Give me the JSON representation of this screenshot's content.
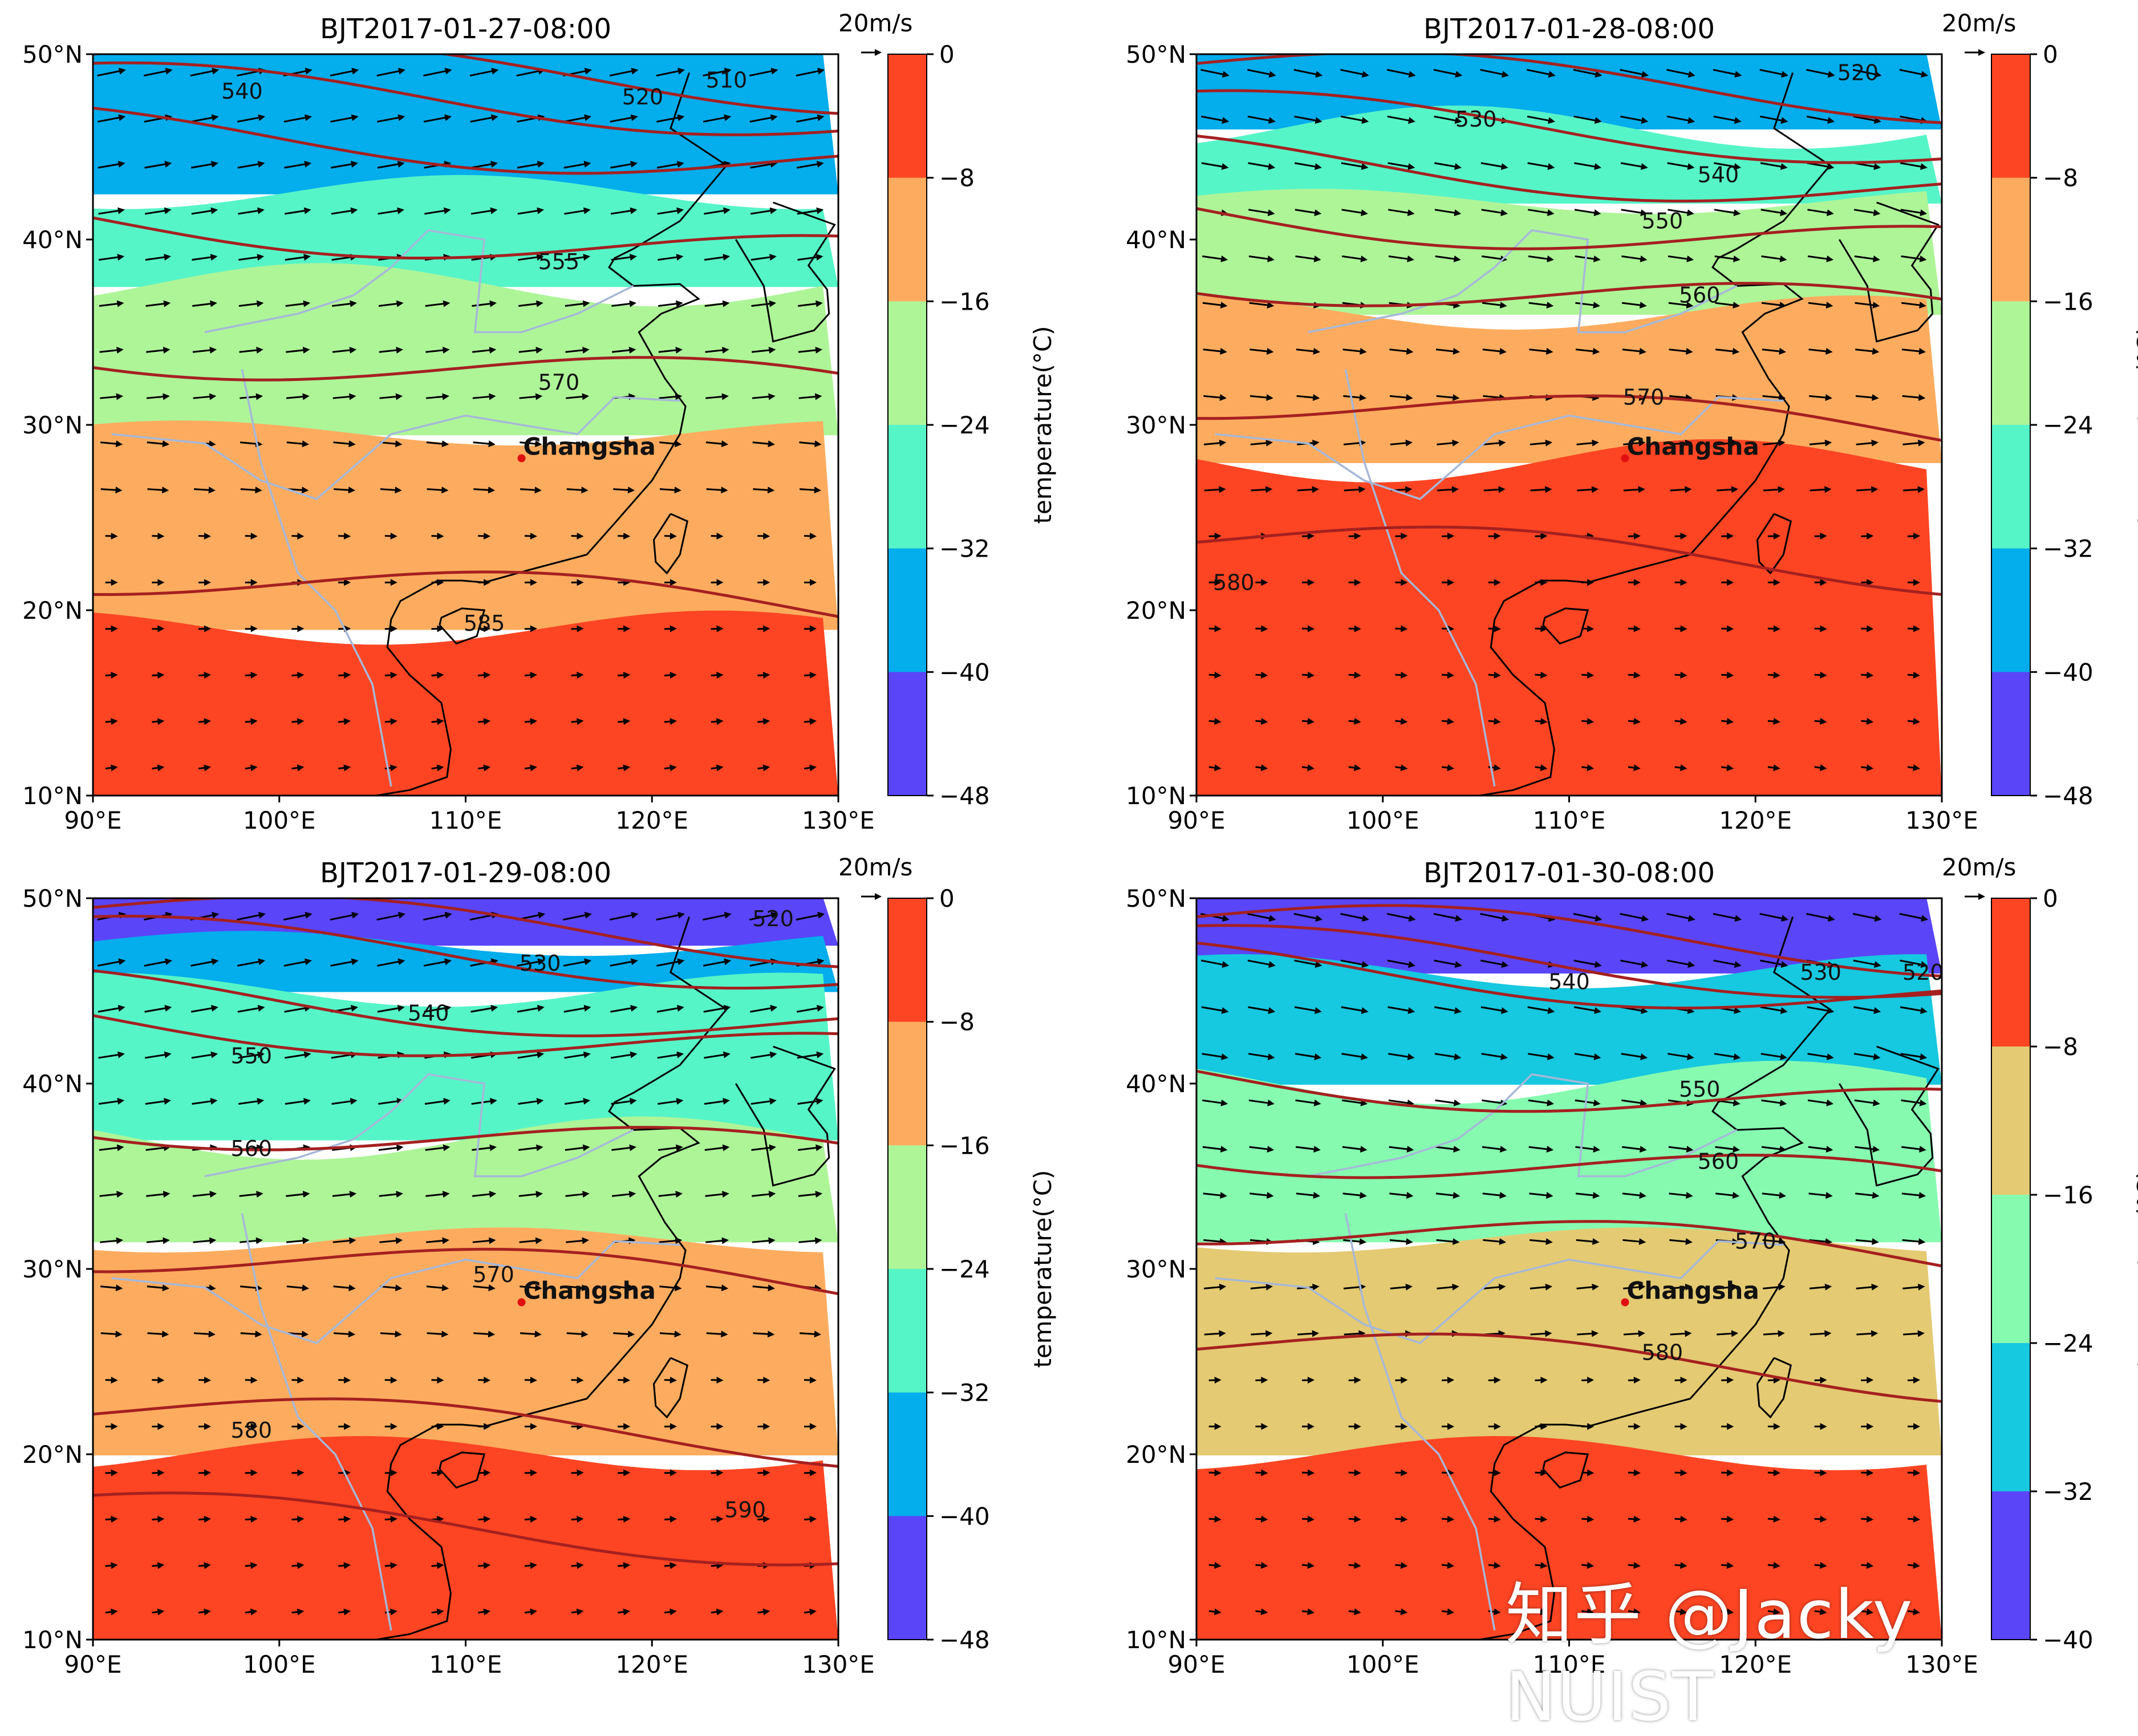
{
  "figure": {
    "colorbar_label": "temperature(°C)",
    "wind_key_label": "20m/s",
    "city": "Changsha",
    "x_ticks": [
      "90°E",
      "100°E",
      "110°E",
      "120°E",
      "130°E"
    ],
    "y_ticks": [
      "50°N",
      "40°N",
      "30°N",
      "20°N",
      "10°N"
    ],
    "extent": {
      "lon": [
        90,
        130
      ],
      "lat": [
        10,
        50
      ]
    },
    "city_lonlat": [
      113,
      28.2
    ]
  },
  "panels": [
    {
      "title": "BJT2017-01-27-08:00",
      "colorbar": {
        "ticks": [
          "0",
          "−8",
          "−16",
          "−24",
          "−32",
          "−40",
          "−48"
        ],
        "colors": [
          "#fd4523",
          "#fdac5f",
          "#aef598",
          "#56f5c8",
          "#04adec",
          "#5a45f8"
        ]
      },
      "zone_lats": [
        50,
        42.5,
        37.5,
        29.5,
        19,
        10
      ],
      "contours": [
        {
          "label": "510",
          "lat": 49,
          "ll": [
            124,
            48.6
          ]
        },
        {
          "label": "520",
          "lat": 47.5,
          "ll": [
            119.5,
            47.7
          ]
        },
        {
          "label": "540",
          "lat": 45,
          "ll": [
            98,
            48
          ]
        },
        {
          "label": "555",
          "lat": 40,
          "ll": [
            115,
            38.8
          ]
        },
        {
          "label": "570",
          "lat": 33,
          "ll": [
            115,
            32.3
          ]
        },
        {
          "label": "585",
          "lat": 21,
          "ll": [
            111,
            19.3
          ]
        }
      ]
    },
    {
      "title": "BJT2017-01-28-08:00",
      "colorbar": {
        "ticks": [
          "0",
          "−8",
          "−16",
          "−24",
          "−32",
          "−40",
          "−48"
        ],
        "colors": [
          "#fd4523",
          "#fdac5f",
          "#aef598",
          "#56f5c8",
          "#04adec",
          "#5a45f8"
        ]
      },
      "zone_lats": [
        50,
        46,
        42,
        36,
        28,
        10
      ],
      "contours": [
        {
          "label": "520",
          "lat": 48.5,
          "ll": [
            125.5,
            49
          ]
        },
        {
          "label": "530",
          "lat": 46,
          "ll": [
            105,
            46.5
          ]
        },
        {
          "label": "540",
          "lat": 43.5,
          "ll": [
            118,
            43.5
          ]
        },
        {
          "label": "550",
          "lat": 40.5,
          "ll": [
            115,
            41
          ]
        },
        {
          "label": "560",
          "lat": 37,
          "ll": [
            117,
            37
          ]
        },
        {
          "label": "570",
          "lat": 30.5,
          "ll": [
            114,
            31.5
          ]
        },
        {
          "label": "580",
          "lat": 23,
          "ll": [
            92,
            21.5
          ]
        }
      ]
    },
    {
      "title": "BJT2017-01-29-08:00",
      "colorbar": {
        "ticks": [
          "0",
          "−8",
          "−16",
          "−24",
          "−32",
          "−40",
          "−48"
        ],
        "colors": [
          "#fd4523",
          "#fdac5f",
          "#aef598",
          "#56f5c8",
          "#04adec",
          "#5a45f8"
        ]
      },
      "zone_lats": [
        50,
        47.5,
        45,
        37,
        31.5,
        20,
        10
      ],
      "contours": [
        {
          "label": "520",
          "lat": 48.5,
          "ll": [
            126.5,
            48.9
          ]
        },
        {
          "label": "530",
          "lat": 47,
          "ll": [
            114,
            46.5
          ]
        },
        {
          "label": "540",
          "lat": 44,
          "ll": [
            108,
            43.8
          ]
        },
        {
          "label": "550",
          "lat": 42.5,
          "ll": [
            98.5,
            41.5
          ]
        },
        {
          "label": "560",
          "lat": 37,
          "ll": [
            98.5,
            36.5
          ]
        },
        {
          "label": "570",
          "lat": 30,
          "ll": [
            111.5,
            29.7
          ]
        },
        {
          "label": "580",
          "lat": 21.5,
          "ll": [
            98.5,
            21.3
          ]
        },
        {
          "label": "590",
          "lat": 16,
          "ll": [
            125,
            17
          ]
        }
      ]
    },
    {
      "title": "BJT2017-01-30-08:00",
      "colorbar": {
        "ticks": [
          "0",
          "−8",
          "−16",
          "−24",
          "−32",
          "−40"
        ],
        "colors": [
          "#fd4523",
          "#e4ca72",
          "#86fbb0",
          "#16c8e0",
          "#5a45f8"
        ]
      },
      "zone_lats": [
        50,
        46,
        40,
        31.5,
        20,
        10
      ],
      "contours": [
        {
          "label": "520",
          "lat": 48,
          "ll": [
            129,
            46
          ]
        },
        {
          "label": "530",
          "lat": 46.5,
          "ll": [
            123.5,
            46
          ]
        },
        {
          "label": "540",
          "lat": 45.5,
          "ll": [
            110,
            45.5
          ]
        },
        {
          "label": "550",
          "lat": 39.5,
          "ll": [
            117,
            39.7
          ]
        },
        {
          "label": "560",
          "lat": 35.5,
          "ll": [
            118,
            35.8
          ]
        },
        {
          "label": "570",
          "lat": 31.5,
          "ll": [
            120,
            31.5
          ]
        },
        {
          "label": "580",
          "lat": 25,
          "ll": [
            115,
            25.5
          ]
        }
      ]
    }
  ],
  "watermark": "知乎 @Jacky NUIST"
}
